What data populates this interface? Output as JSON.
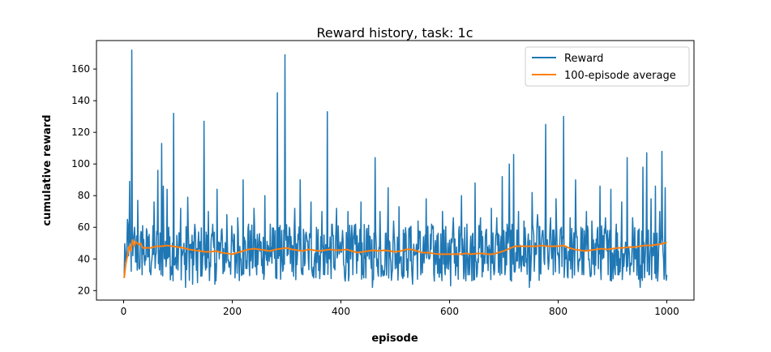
{
  "chart_data": {
    "type": "line",
    "title": "Reward history, task: 1c",
    "xlabel": "episode",
    "ylabel": "cumulative reward",
    "xlim": [
      -50,
      1050
    ],
    "ylim": [
      14,
      178
    ],
    "xticks": [
      0,
      200,
      400,
      600,
      800,
      1000
    ],
    "yticks": [
      20,
      40,
      60,
      80,
      100,
      120,
      140,
      160
    ],
    "grid": false,
    "legend_position": "top-right",
    "series": [
      {
        "name": "Reward",
        "color": "#1f77b4",
        "episodes": 1000,
        "baseline_range": [
          26,
          62
        ],
        "points": [
          [
            1,
            28
          ],
          [
            3,
            44
          ],
          [
            5,
            38
          ],
          [
            7,
            65
          ],
          [
            9,
            42
          ],
          [
            11,
            89
          ],
          [
            13,
            51
          ],
          [
            15,
            172
          ],
          [
            17,
            42
          ],
          [
            20,
            60
          ],
          [
            23,
            38
          ],
          [
            26,
            77
          ],
          [
            30,
            35
          ],
          [
            35,
            61
          ],
          [
            40,
            42
          ],
          [
            45,
            54
          ],
          [
            50,
            30
          ],
          [
            56,
            76
          ],
          [
            60,
            44
          ],
          [
            63,
            96
          ],
          [
            66,
            33
          ],
          [
            70,
            113
          ],
          [
            73,
            86
          ],
          [
            76,
            40
          ],
          [
            80,
            84
          ],
          [
            85,
            54
          ],
          [
            88,
            30
          ],
          [
            92,
            132
          ],
          [
            95,
            40
          ],
          [
            100,
            33
          ],
          [
            105,
            72
          ],
          [
            110,
            45
          ],
          [
            114,
            22
          ],
          [
            118,
            79
          ],
          [
            123,
            44
          ],
          [
            127,
            24
          ],
          [
            132,
            58
          ],
          [
            136,
            25
          ],
          [
            140,
            46
          ],
          [
            146,
            44
          ],
          [
            148,
            127
          ],
          [
            151,
            33
          ],
          [
            156,
            70
          ],
          [
            160,
            35
          ],
          [
            165,
            52
          ],
          [
            168,
            24
          ],
          [
            172,
            84
          ],
          [
            176,
            40
          ],
          [
            180,
            58
          ],
          [
            185,
            32
          ],
          [
            190,
            68
          ],
          [
            195,
            38
          ],
          [
            200,
            52
          ],
          [
            205,
            28
          ],
          [
            210,
            66
          ],
          [
            215,
            40
          ],
          [
            220,
            90
          ],
          [
            225,
            34
          ],
          [
            230,
            62
          ],
          [
            235,
            45
          ],
          [
            240,
            72
          ],
          [
            245,
            30
          ],
          [
            250,
            56
          ],
          [
            255,
            40
          ],
          [
            260,
            80
          ],
          [
            265,
            36
          ],
          [
            270,
            62
          ],
          [
            275,
            45
          ],
          [
            280,
            28
          ],
          [
            283,
            145
          ],
          [
            287,
            42
          ],
          [
            291,
            58
          ],
          [
            294,
            34
          ],
          [
            297,
            169
          ],
          [
            301,
            42
          ],
          [
            305,
            60
          ],
          [
            310,
            32
          ],
          [
            315,
            72
          ],
          [
            320,
            42
          ],
          [
            325,
            90
          ],
          [
            330,
            30
          ],
          [
            335,
            55
          ],
          [
            340,
            40
          ],
          [
            345,
            76
          ],
          [
            350,
            28
          ],
          [
            355,
            60
          ],
          [
            360,
            42
          ],
          [
            365,
            70
          ],
          [
            370,
            30
          ],
          [
            375,
            133
          ],
          [
            379,
            40
          ],
          [
            384,
            62
          ],
          [
            388,
            35
          ],
          [
            392,
            72
          ],
          [
            398,
            45
          ],
          [
            403,
            58
          ],
          [
            408,
            26
          ],
          [
            413,
            70
          ],
          [
            418,
            40
          ],
          [
            422,
            30
          ],
          [
            427,
            62
          ],
          [
            432,
            45
          ],
          [
            437,
            76
          ],
          [
            442,
            28
          ],
          [
            447,
            58
          ],
          [
            452,
            40
          ],
          [
            458,
            22
          ],
          [
            463,
            104
          ],
          [
            467,
            40
          ],
          [
            472,
            70
          ],
          [
            477,
            30
          ],
          [
            482,
            56
          ],
          [
            487,
            85
          ],
          [
            492,
            38
          ],
          [
            497,
            64
          ],
          [
            502,
            42
          ],
          [
            507,
            73
          ],
          [
            512,
            30
          ],
          [
            517,
            56
          ],
          [
            522,
            40
          ],
          [
            527,
            60
          ],
          [
            532,
            24
          ],
          [
            537,
            44
          ],
          [
            542,
            64
          ],
          [
            547,
            30
          ],
          [
            552,
            54
          ],
          [
            557,
            78
          ],
          [
            562,
            40
          ],
          [
            567,
            62
          ],
          [
            572,
            26
          ],
          [
            577,
            55
          ],
          [
            582,
            40
          ],
          [
            587,
            70
          ],
          [
            592,
            30
          ],
          [
            597,
            50
          ],
          [
            602,
            23
          ],
          [
            607,
            66
          ],
          [
            612,
            38
          ],
          [
            617,
            58
          ],
          [
            622,
            80
          ],
          [
            627,
            40
          ],
          [
            632,
            62
          ],
          [
            637,
            30
          ],
          [
            642,
            55
          ],
          [
            647,
            88
          ],
          [
            652,
            40
          ],
          [
            657,
            66
          ],
          [
            662,
            32
          ],
          [
            667,
            58
          ],
          [
            672,
            44
          ],
          [
            677,
            72
          ],
          [
            682,
            30
          ],
          [
            687,
            66
          ],
          [
            692,
            40
          ],
          [
            697,
            92
          ],
          [
            702,
            30
          ],
          [
            706,
            62
          ],
          [
            710,
            100
          ],
          [
            714,
            26
          ],
          [
            718,
            106
          ],
          [
            722,
            44
          ],
          [
            727,
            70
          ],
          [
            732,
            32
          ],
          [
            737,
            64
          ],
          [
            742,
            40
          ],
          [
            747,
            22
          ],
          [
            752,
            82
          ],
          [
            757,
            44
          ],
          [
            762,
            68
          ],
          [
            767,
            32
          ],
          [
            772,
            58
          ],
          [
            777,
            125
          ],
          [
            781,
            40
          ],
          [
            786,
            66
          ],
          [
            791,
            30
          ],
          [
            796,
            78
          ],
          [
            801,
            40
          ],
          [
            806,
            60
          ],
          [
            810,
            130
          ],
          [
            814,
            40
          ],
          [
            818,
            28
          ],
          [
            822,
            66
          ],
          [
            827,
            44
          ],
          [
            832,
            90
          ],
          [
            837,
            32
          ],
          [
            842,
            60
          ],
          [
            847,
            30
          ],
          [
            852,
            70
          ],
          [
            857,
            40
          ],
          [
            862,
            64
          ],
          [
            867,
            30
          ],
          [
            872,
            58
          ],
          [
            877,
            86
          ],
          [
            882,
            40
          ],
          [
            887,
            66
          ],
          [
            892,
            30
          ],
          [
            897,
            84
          ],
          [
            902,
            40
          ],
          [
            907,
            62
          ],
          [
            912,
            30
          ],
          [
            917,
            76
          ],
          [
            922,
            42
          ],
          [
            927,
            104
          ],
          [
            932,
            30
          ],
          [
            937,
            66
          ],
          [
            942,
            40
          ],
          [
            947,
            58
          ],
          [
            951,
            22
          ],
          [
            956,
            98
          ],
          [
            960,
            40
          ],
          [
            963,
            107
          ],
          [
            967,
            30
          ],
          [
            971,
            78
          ],
          [
            975,
            42
          ],
          [
            979,
            86
          ],
          [
            983,
            26
          ],
          [
            987,
            70
          ],
          [
            991,
            108
          ],
          [
            994,
            40
          ],
          [
            997,
            85
          ],
          [
            1000,
            30
          ]
        ]
      },
      {
        "name": "100-episode average",
        "color": "#ff7f0e",
        "points": [
          [
            1,
            28
          ],
          [
            4,
            37
          ],
          [
            7,
            42
          ],
          [
            10,
            48
          ],
          [
            13,
            45
          ],
          [
            16,
            52
          ],
          [
            19,
            48
          ],
          [
            22,
            51
          ],
          [
            25,
            50
          ],
          [
            28,
            49
          ],
          [
            31,
            50
          ],
          [
            35,
            47
          ],
          [
            40,
            47
          ],
          [
            50,
            47
          ],
          [
            60,
            48
          ],
          [
            70,
            48
          ],
          [
            80,
            48.5
          ],
          [
            90,
            48
          ],
          [
            100,
            47.5
          ],
          [
            110,
            47
          ],
          [
            120,
            46
          ],
          [
            130,
            45.5
          ],
          [
            140,
            45
          ],
          [
            150,
            44.5
          ],
          [
            160,
            44.5
          ],
          [
            170,
            45
          ],
          [
            180,
            44
          ],
          [
            190,
            43.5
          ],
          [
            200,
            43
          ],
          [
            210,
            44
          ],
          [
            220,
            45
          ],
          [
            230,
            46
          ],
          [
            240,
            46.5
          ],
          [
            250,
            46
          ],
          [
            260,
            45.5
          ],
          [
            270,
            45
          ],
          [
            280,
            46
          ],
          [
            290,
            46.5
          ],
          [
            300,
            47
          ],
          [
            310,
            46
          ],
          [
            320,
            45.5
          ],
          [
            330,
            45
          ],
          [
            340,
            46
          ],
          [
            350,
            45.5
          ],
          [
            360,
            45
          ],
          [
            370,
            45.5
          ],
          [
            380,
            46
          ],
          [
            390,
            45.5
          ],
          [
            400,
            45.5
          ],
          [
            410,
            46
          ],
          [
            420,
            45
          ],
          [
            430,
            44
          ],
          [
            440,
            44.5
          ],
          [
            450,
            45
          ],
          [
            460,
            45.5
          ],
          [
            470,
            45
          ],
          [
            480,
            45.5
          ],
          [
            490,
            45
          ],
          [
            500,
            44.5
          ],
          [
            510,
            45
          ],
          [
            520,
            46
          ],
          [
            530,
            46
          ],
          [
            540,
            45
          ],
          [
            550,
            44
          ],
          [
            560,
            44
          ],
          [
            570,
            43.5
          ],
          [
            580,
            43
          ],
          [
            590,
            43
          ],
          [
            600,
            43
          ],
          [
            610,
            43
          ],
          [
            620,
            43
          ],
          [
            630,
            43.5
          ],
          [
            640,
            43
          ],
          [
            650,
            43.5
          ],
          [
            660,
            43.5
          ],
          [
            670,
            43
          ],
          [
            680,
            43
          ],
          [
            690,
            44
          ],
          [
            700,
            45
          ],
          [
            710,
            46.5
          ],
          [
            720,
            48
          ],
          [
            730,
            48
          ],
          [
            740,
            48
          ],
          [
            750,
            48
          ],
          [
            760,
            48
          ],
          [
            770,
            48.5
          ],
          [
            780,
            48
          ],
          [
            790,
            48
          ],
          [
            800,
            48
          ],
          [
            810,
            48.5
          ],
          [
            820,
            47
          ],
          [
            830,
            46
          ],
          [
            840,
            45.5
          ],
          [
            850,
            45
          ],
          [
            860,
            45.5
          ],
          [
            870,
            46
          ],
          [
            880,
            46.5
          ],
          [
            890,
            46
          ],
          [
            900,
            46.5
          ],
          [
            910,
            47
          ],
          [
            920,
            47
          ],
          [
            930,
            47.5
          ],
          [
            940,
            47.5
          ],
          [
            950,
            48
          ],
          [
            960,
            48.5
          ],
          [
            970,
            48.5
          ],
          [
            980,
            49
          ],
          [
            990,
            49.5
          ],
          [
            1000,
            50.5
          ]
        ]
      }
    ]
  }
}
